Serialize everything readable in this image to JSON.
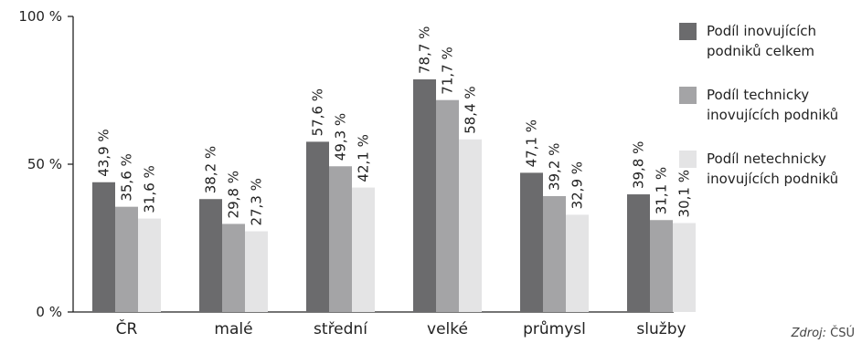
{
  "chart_data": {
    "type": "bar",
    "categories": [
      "ČR",
      "malé",
      "střední",
      "velké",
      "průmysl",
      "služby"
    ],
    "series": [
      {
        "name": "Podíl inovujících podniků celkem",
        "legend_lines": [
          "Podíl inovujících",
          "podniků celkem"
        ],
        "color": "#6b6b6d",
        "values": [
          43.9,
          38.2,
          57.6,
          78.7,
          47.1,
          39.8
        ],
        "labels": [
          "43,9 %",
          "38,2 %",
          "57,6 %",
          "78,7 %",
          "47,1 %",
          "39,8 %"
        ]
      },
      {
        "name": "Podíl technicky inovujících podniků",
        "legend_lines": [
          "Podíl technicky",
          "inovujících podniků"
        ],
        "color": "#a4a4a6",
        "values": [
          35.6,
          29.8,
          49.3,
          71.7,
          39.2,
          31.1
        ],
        "labels": [
          "35,6 %",
          "29,8 %",
          "49,3 %",
          "71,7 %",
          "39,2 %",
          "31,1 %"
        ]
      },
      {
        "name": "Podíl netechnicky inovujících podniků",
        "legend_lines": [
          "Podíl netechnicky",
          "inovujících podniků"
        ],
        "color": "#e4e4e5",
        "values": [
          31.6,
          27.3,
          42.1,
          58.4,
          32.9,
          30.1
        ],
        "labels": [
          "31,6 %",
          "27,3 %",
          "42,1 %",
          "58,4 %",
          "32,9 %",
          "30,1 %"
        ]
      }
    ],
    "yticks": [
      "0 %",
      "50 %",
      "100 %"
    ],
    "ylim": [
      0,
      100
    ],
    "grid": false,
    "legend_position": "right",
    "source": {
      "prefix": "Zdroj:",
      "text": " ČSÚ"
    }
  }
}
